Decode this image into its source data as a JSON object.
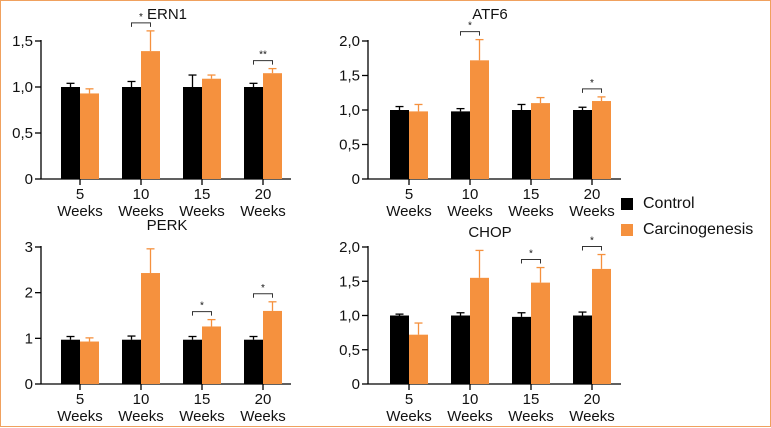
{
  "colors": {
    "control": "#000000",
    "carcinogenesis": "#f5913e",
    "frame": "#f0a15e"
  },
  "legend": {
    "control_label": "Control",
    "carcinogenesis_label": "Carcinogenesis"
  },
  "chart_data": [
    {
      "type": "bar",
      "title": "ERN1",
      "categories": [
        "5 Weeks",
        "10 Weeks",
        "15 Weeks",
        "20 Weeks"
      ],
      "category_lines": [
        [
          "5",
          "Weeks"
        ],
        [
          "10",
          "Weeks"
        ],
        [
          "15",
          "Weeks"
        ],
        [
          "20",
          "Weeks"
        ]
      ],
      "ylim": [
        0,
        1.5
      ],
      "yticks": [
        0,
        0.5,
        1.0,
        1.5
      ],
      "ytick_labels": [
        "0",
        "0,5",
        "1,0",
        "1,5"
      ],
      "series": [
        {
          "name": "Control",
          "values": [
            1.0,
            1.0,
            1.0,
            1.0
          ],
          "errors": [
            0.04,
            0.06,
            0.13,
            0.04
          ]
        },
        {
          "name": "Carcinogenesis",
          "values": [
            0.93,
            1.39,
            1.09,
            1.15
          ],
          "errors": [
            0.05,
            0.22,
            0.04,
            0.05
          ]
        }
      ],
      "significance": [
        {
          "category_index": 1,
          "label": "*"
        },
        {
          "category_index": 3,
          "label": "**"
        }
      ]
    },
    {
      "type": "bar",
      "title": "ATF6",
      "categories": [
        "5 Weeks",
        "10 Weeks",
        "15 Weeks",
        "20 Weeks"
      ],
      "category_lines": [
        [
          "5",
          "Weeks"
        ],
        [
          "10",
          "Weeks"
        ],
        [
          "15",
          "Weeks"
        ],
        [
          "20",
          "Weeks"
        ]
      ],
      "ylim": [
        0,
        2.0
      ],
      "yticks": [
        0,
        0.5,
        1.0,
        1.5,
        2.0
      ],
      "ytick_labels": [
        "0",
        "0,5",
        "1,0",
        "1,5",
        "2,0"
      ],
      "series": [
        {
          "name": "Control",
          "values": [
            1.0,
            0.98,
            1.0,
            1.0
          ],
          "errors": [
            0.05,
            0.04,
            0.08,
            0.04
          ]
        },
        {
          "name": "Carcinogenesis",
          "values": [
            0.98,
            1.72,
            1.1,
            1.13
          ],
          "errors": [
            0.1,
            0.3,
            0.08,
            0.06
          ]
        }
      ],
      "significance": [
        {
          "category_index": 1,
          "label": "*"
        },
        {
          "category_index": 3,
          "label": "*"
        }
      ]
    },
    {
      "type": "bar",
      "title": "PERK",
      "categories": [
        "5 Weeks",
        "10 Weeks",
        "15 Weeks",
        "20 Weeks"
      ],
      "category_lines": [
        [
          "5",
          "Weeks"
        ],
        [
          "10",
          "Weeks"
        ],
        [
          "15",
          "Weeks"
        ],
        [
          "20",
          "Weeks"
        ]
      ],
      "ylim": [
        0,
        3
      ],
      "yticks": [
        0,
        1,
        2,
        3
      ],
      "ytick_labels": [
        "0",
        "1",
        "2",
        "3"
      ],
      "series": [
        {
          "name": "Control",
          "values": [
            0.97,
            0.97,
            0.97,
            0.97
          ],
          "errors": [
            0.07,
            0.08,
            0.07,
            0.07
          ]
        },
        {
          "name": "Carcinogenesis",
          "values": [
            0.93,
            2.43,
            1.26,
            1.6
          ],
          "errors": [
            0.08,
            0.53,
            0.15,
            0.2
          ]
        }
      ],
      "significance": [
        {
          "category_index": 2,
          "label": "*"
        },
        {
          "category_index": 3,
          "label": "*"
        }
      ]
    },
    {
      "type": "bar",
      "title": "CHOP",
      "categories": [
        "5 Weeks",
        "10 Weeks",
        "15 Weeks",
        "20 Weeks"
      ],
      "category_lines": [
        [
          "5",
          "Weeks"
        ],
        [
          "10",
          "Weeks"
        ],
        [
          "15",
          "Weeks"
        ],
        [
          "20",
          "Weeks"
        ]
      ],
      "ylim": [
        0,
        2.0
      ],
      "yticks": [
        0,
        0.5,
        1.0,
        1.5,
        2.0
      ],
      "ytick_labels": [
        "0",
        "0,5",
        "1,0",
        "1,5",
        "2,0"
      ],
      "series": [
        {
          "name": "Control",
          "values": [
            1.0,
            1.0,
            0.98,
            1.0
          ],
          "errors": [
            0.02,
            0.04,
            0.06,
            0.05
          ]
        },
        {
          "name": "Carcinogenesis",
          "values": [
            0.72,
            1.55,
            1.48,
            1.68
          ],
          "errors": [
            0.17,
            0.4,
            0.22,
            0.21
          ]
        }
      ],
      "significance": [
        {
          "category_index": 2,
          "label": "*"
        },
        {
          "category_index": 3,
          "label": "*"
        }
      ]
    }
  ]
}
